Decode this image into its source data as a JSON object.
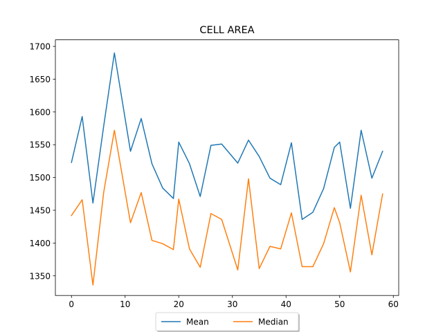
{
  "chart_data": {
    "type": "line",
    "title": "CELL AREA",
    "xlabel": "",
    "ylabel": "",
    "xlim": [
      -3,
      61
    ],
    "ylim": [
      1320,
      1710
    ],
    "x_ticks": [
      0,
      10,
      20,
      30,
      40,
      50,
      60
    ],
    "y_ticks": [
      1350,
      1400,
      1450,
      1500,
      1550,
      1600,
      1650,
      1700
    ],
    "grid": false,
    "legend_placement": "bottom-center",
    "x": [
      0,
      2,
      4,
      6,
      8,
      11,
      13,
      15,
      17,
      19,
      20,
      22,
      24,
      26,
      28,
      31,
      33,
      35,
      37,
      39,
      41,
      43,
      45,
      47,
      49,
      50,
      52,
      54,
      56,
      58
    ],
    "series": [
      {
        "name": "Mean",
        "color": "#1f77b4",
        "values": [
          1523,
          1593,
          1461,
          1578,
          1690,
          1540,
          1590,
          1521,
          1484,
          1468,
          1554,
          1521,
          1471,
          1549,
          1551,
          1522,
          1557,
          1532,
          1499,
          1489,
          1553,
          1436,
          1447,
          1483,
          1546,
          1554,
          1453,
          1572,
          1499,
          1540
        ]
      },
      {
        "name": "Median",
        "color": "#ff7f0e",
        "values": [
          1442,
          1466,
          1336,
          1477,
          1572,
          1431,
          1477,
          1404,
          1399,
          1390,
          1467,
          1391,
          1363,
          1445,
          1436,
          1359,
          1498,
          1361,
          1395,
          1391,
          1446,
          1364,
          1364,
          1399,
          1454,
          1431,
          1356,
          1473,
          1382,
          1475
        ]
      }
    ]
  }
}
